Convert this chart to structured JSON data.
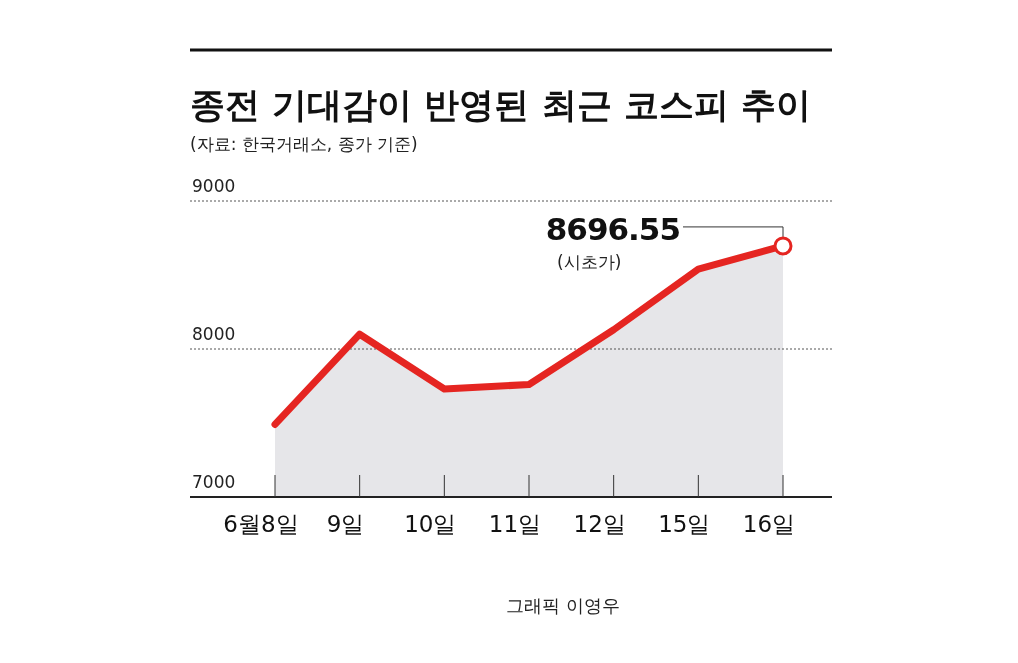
{
  "chart_data": {
    "type": "area",
    "title": "종전 기대감이 반영된 최근 코스피 추이",
    "subtitle": "(자료: 한국거래소, 종가 기준)",
    "categories": [
      "6월8일",
      "9일",
      "10일",
      "11일",
      "12일",
      "15일",
      "16일"
    ],
    "values": [
      7490,
      8100,
      7730,
      7760,
      8130,
      8540,
      8696.55
    ],
    "color": "#e52521",
    "ylim": [
      7000,
      9000
    ],
    "yticks": [
      7000,
      8000,
      9000
    ],
    "grid": "y",
    "annotations": [
      {
        "text": "8696.55",
        "x": "16일",
        "y": 8696.55
      },
      "(시초가)",
      "그래픽 이영우"
    ]
  }
}
